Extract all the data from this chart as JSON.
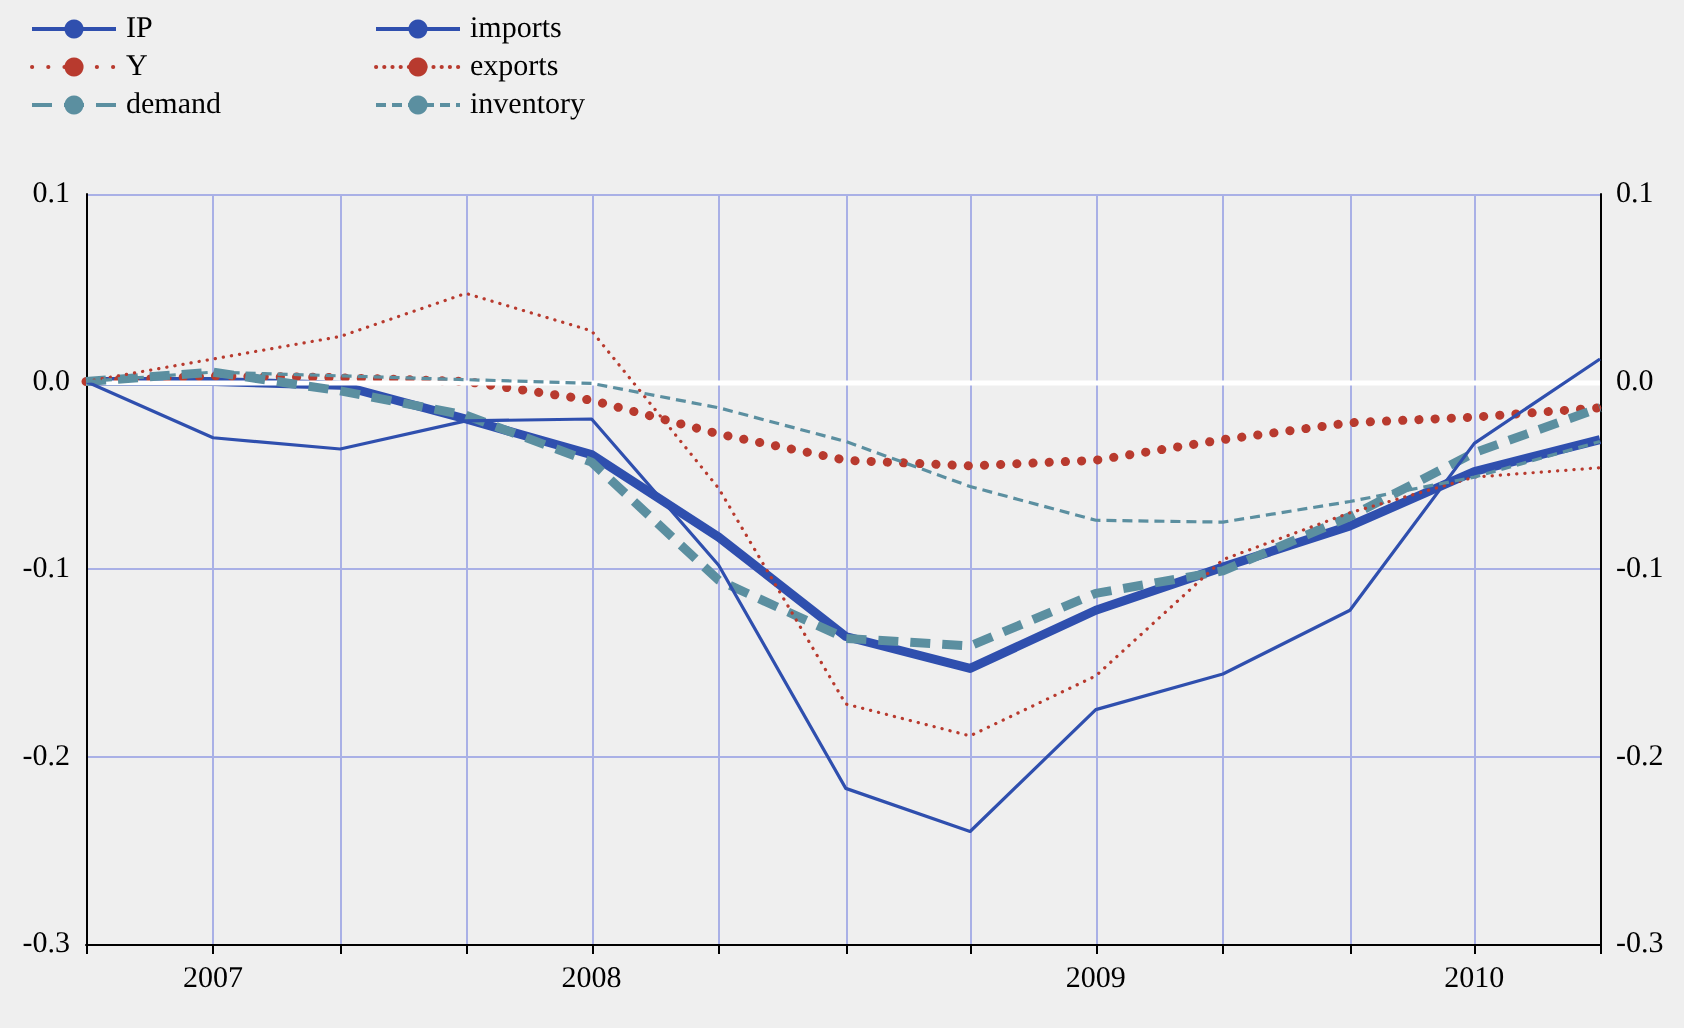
{
  "chart_data": {
    "type": "line",
    "x": [
      "2007-07",
      "2007-10",
      "2008-01",
      "2008-04",
      "2008-07",
      "2008-10",
      "2009-01",
      "2009-04",
      "2009-07",
      "2009-10",
      "2010-01",
      "2010-04",
      "2010-07"
    ],
    "series": [
      {
        "name": "IP",
        "color": "#2f4fae",
        "line_style": "solid",
        "values": [
          0,
          0.0,
          -0.002,
          -0.02,
          -0.039,
          -0.083,
          -0.136,
          -0.153,
          -0.122,
          -0.099,
          -0.077,
          -0.048,
          -0.031
        ]
      },
      {
        "name": "Y",
        "color": "#b83a2e",
        "line_style": "dotted",
        "values": [
          0,
          0.003,
          0.002,
          0.0,
          -0.01,
          -0.028,
          -0.042,
          -0.045,
          -0.042,
          -0.031,
          -0.022,
          -0.019,
          -0.014
        ]
      },
      {
        "name": "demand",
        "color": "#5b8fa0",
        "line_style": "dashed",
        "values": [
          0,
          0.005,
          -0.005,
          -0.018,
          -0.043,
          -0.106,
          -0.137,
          -0.141,
          -0.113,
          -0.101,
          -0.072,
          -0.038,
          -0.014
        ]
      },
      {
        "name": "imports",
        "color": "#2f4fae",
        "line_style": "solid",
        "values": [
          0,
          -0.03,
          -0.036,
          -0.021,
          -0.02,
          -0.098,
          -0.217,
          -0.24,
          -0.175,
          -0.156,
          -0.122,
          -0.033,
          0.012
        ]
      },
      {
        "name": "exports",
        "color": "#b83a2e",
        "line_style": "dotted",
        "values": [
          0,
          0.012,
          0.024,
          0.047,
          0.027,
          -0.057,
          -0.172,
          -0.189,
          -0.157,
          -0.095,
          -0.07,
          -0.051,
          -0.046
        ]
      },
      {
        "name": "inventory",
        "color": "#5b8fa0",
        "line_style": "dashed",
        "values": [
          0,
          0.005,
          0.003,
          0.001,
          -0.001,
          -0.014,
          -0.032,
          -0.056,
          -0.074,
          -0.075,
          -0.064,
          -0.051,
          -0.032
        ]
      }
    ],
    "xlim": [
      "2007-07",
      "2010-07"
    ],
    "xticks": [
      {
        "value": "2007-07",
        "label": null
      },
      {
        "value": "2007-10",
        "label": "2007"
      },
      {
        "value": "2008-01",
        "label": null
      },
      {
        "value": "2008-04",
        "label": null
      },
      {
        "value": "2008-07",
        "label": "2008"
      },
      {
        "value": "2008-10",
        "label": null
      },
      {
        "value": "2009-01",
        "label": null
      },
      {
        "value": "2009-04",
        "label": null
      },
      {
        "value": "2009-07",
        "label": "2009"
      },
      {
        "value": "2009-10",
        "label": null
      },
      {
        "value": "2010-01",
        "label": null
      },
      {
        "value": "2010-04",
        "label": "2010"
      },
      {
        "value": "2010-07",
        "label": null
      }
    ],
    "ylim": [
      -0.3,
      0.1
    ],
    "yticks": [
      {
        "value": -0.3,
        "label": "-0.3"
      },
      {
        "value": -0.2,
        "label": "-0.2"
      },
      {
        "value": -0.1,
        "label": "-0.1"
      },
      {
        "value": 0,
        "label": "0.0"
      },
      {
        "value": 0.1,
        "label": "0.1"
      }
    ],
    "y2lim": [
      -0.3,
      0.1
    ],
    "y2ticks": [
      {
        "value": -0.3,
        "label": "-0.3"
      },
      {
        "value": -0.2,
        "label": "-0.2"
      },
      {
        "value": -0.1,
        "label": "-0.1"
      },
      {
        "value": 0,
        "label": "0.0"
      },
      {
        "value": 0.1,
        "label": "0.1"
      }
    ],
    "ref_lines": [
      {
        "axis": "y",
        "value": 0,
        "color": "#ffffff"
      }
    ],
    "grid": true,
    "legend": "top left",
    "marker": "none"
  }
}
